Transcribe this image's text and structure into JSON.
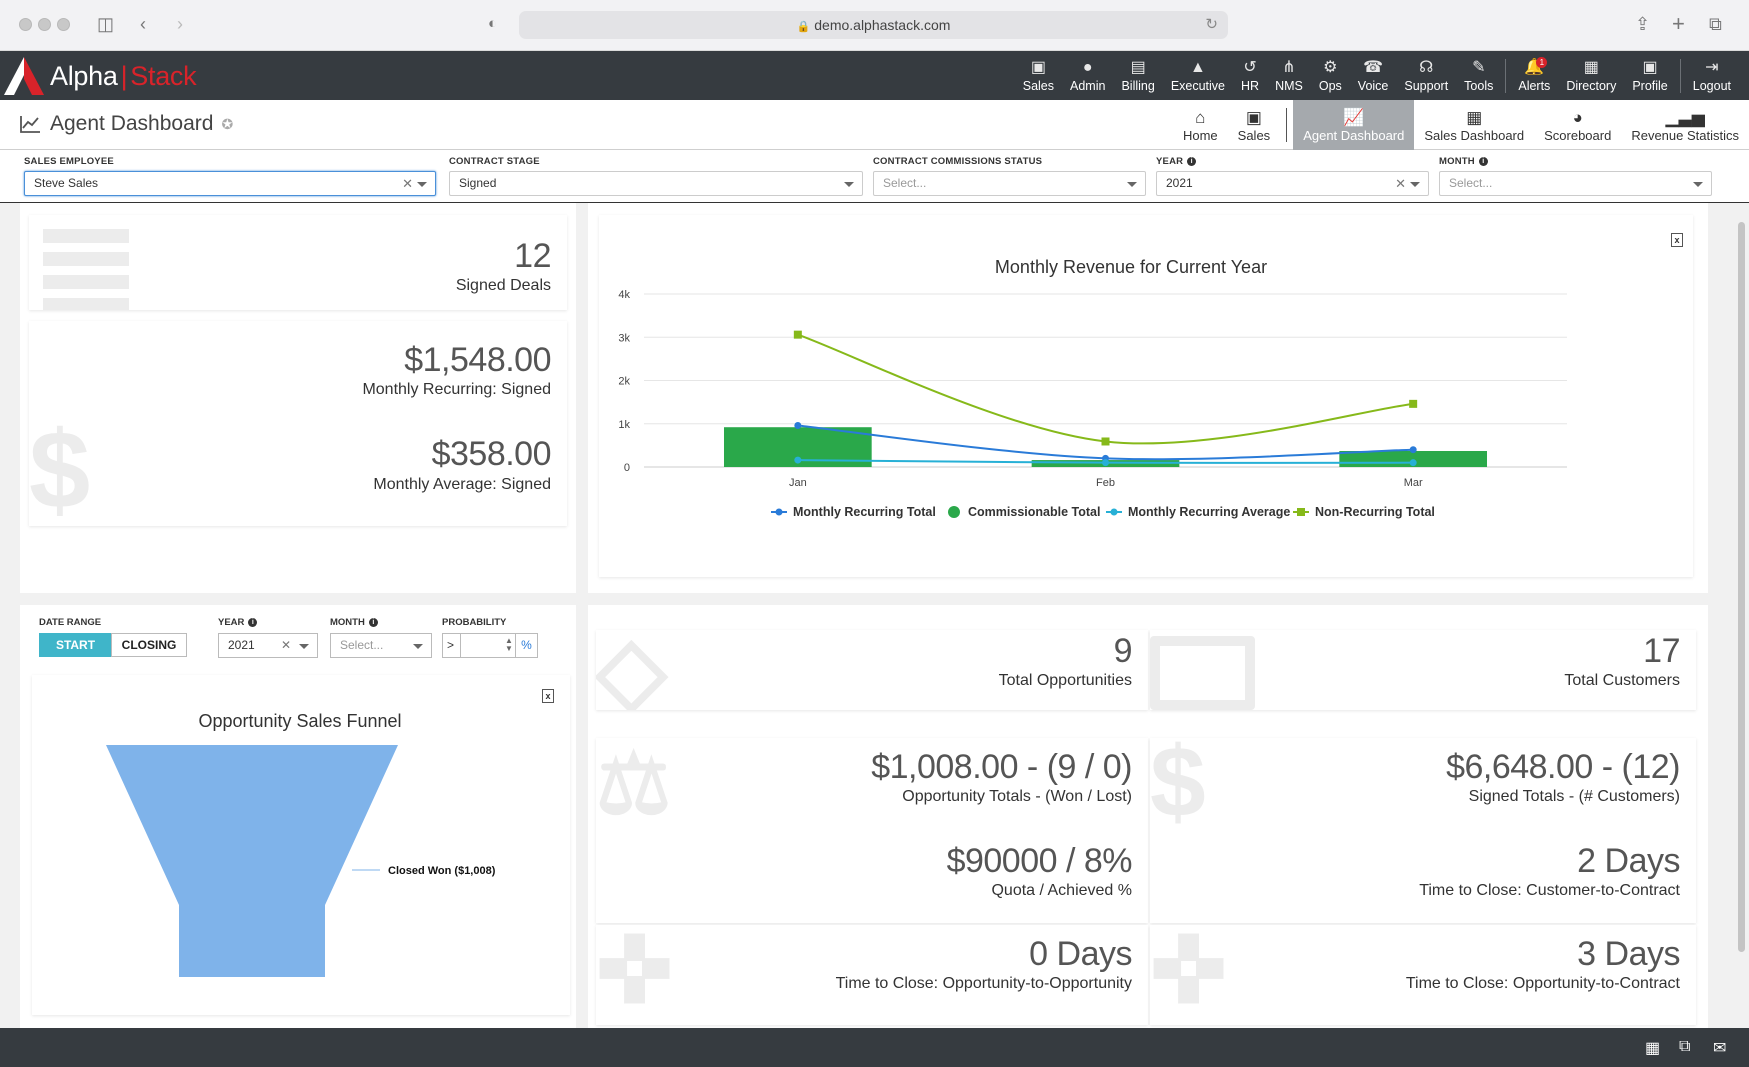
{
  "browser": {
    "url": "demo.alphastack.com"
  },
  "app": {
    "logo_alpha": "Alpha",
    "logo_stack": "Stack",
    "topnav": [
      {
        "label": "Sales",
        "icon": "sales-icon",
        "glyph": "▣"
      },
      {
        "label": "Admin",
        "icon": "admin-icon",
        "glyph": "●"
      },
      {
        "label": "Billing",
        "icon": "billing-icon",
        "glyph": "▤"
      },
      {
        "label": "Executive",
        "icon": "executive-icon",
        "glyph": "▲"
      },
      {
        "label": "HR",
        "icon": "hr-icon",
        "glyph": "↺"
      },
      {
        "label": "NMS",
        "icon": "nms-icon",
        "glyph": "⋔"
      },
      {
        "label": "Ops",
        "icon": "ops-icon",
        "glyph": "⚙"
      },
      {
        "label": "Voice",
        "icon": "voice-icon",
        "glyph": "☎"
      },
      {
        "label": "Support",
        "icon": "support-icon",
        "glyph": "☊"
      },
      {
        "label": "Tools",
        "icon": "tools-icon",
        "glyph": "✎"
      },
      {
        "label": "Alerts",
        "icon": "alerts-icon",
        "glyph": "🔔",
        "badge": "1"
      },
      {
        "label": "Directory",
        "icon": "directory-icon",
        "glyph": "▦"
      },
      {
        "label": "Profile",
        "icon": "profile-icon",
        "glyph": "▣"
      },
      {
        "label": "Logout",
        "icon": "logout-icon",
        "glyph": "⇥"
      }
    ]
  },
  "subheader": {
    "title": "Agent Dashboard",
    "nav": [
      {
        "label": "Home",
        "glyph": "⌂",
        "active": false
      },
      {
        "label": "Sales",
        "glyph": "▣",
        "active": false
      },
      {
        "label": "Agent Dashboard",
        "glyph": "📈",
        "active": true
      },
      {
        "label": "Sales Dashboard",
        "glyph": "▦",
        "active": false
      },
      {
        "label": "Scoreboard",
        "glyph": "◕",
        "active": false
      },
      {
        "label": "Revenue Statistics",
        "glyph": "▁▃▅",
        "active": false
      }
    ]
  },
  "filters": {
    "sales_employee": {
      "label": "SALES EMPLOYEE",
      "value": "Steve Sales"
    },
    "contract_stage": {
      "label": "CONTRACT STAGE",
      "value": "Signed"
    },
    "commission_status": {
      "label": "CONTRACT COMMISSIONS STATUS",
      "placeholder": "Select..."
    },
    "year": {
      "label": "YEAR",
      "value": "2021"
    },
    "month": {
      "label": "MONTH",
      "placeholder": "Select..."
    }
  },
  "stats_top": {
    "signed_deals": {
      "value": "12",
      "label": "Signed Deals"
    },
    "monthly_recurring": {
      "value": "$1,548.00",
      "label": "Monthly Recurring: Signed"
    },
    "monthly_average": {
      "value": "$358.00",
      "label": "Monthly Average: Signed"
    }
  },
  "revenue_chart": {
    "title": "Monthly Revenue for Current Year"
  },
  "chart_data": [
    {
      "type": "line",
      "title": "Monthly Revenue for Current Year",
      "categories": [
        "Jan",
        "Feb",
        "Mar"
      ],
      "ylim": [
        0,
        4000
      ],
      "yticks": [
        "0",
        "1k",
        "2k",
        "3k",
        "4k"
      ],
      "legend_position": "bottom",
      "series": [
        {
          "name": "Monthly Recurring Total",
          "kind": "line",
          "color": "#2a7bd8",
          "values": [
            960,
            200,
            400
          ]
        },
        {
          "name": "Commissionable Total",
          "kind": "bar",
          "color": "#2aa84a",
          "values": [
            920,
            160,
            370
          ]
        },
        {
          "name": "Monthly Recurring Average",
          "kind": "line",
          "color": "#27b0d6",
          "values": [
            160,
            100,
            100
          ]
        },
        {
          "name": "Non-Recurring Total",
          "kind": "line",
          "color": "#86b91a",
          "values": [
            3060,
            590,
            1460
          ]
        }
      ]
    },
    {
      "type": "funnel",
      "title": "Opportunity Sales Funnel",
      "categories": [
        "Closed Won ($1,008)"
      ],
      "values": [
        1008
      ],
      "color": "#7fb3ea"
    }
  ],
  "funnel_controls": {
    "date_range_label": "DATE RANGE",
    "start": "START",
    "closing": "CLOSING",
    "year_label": "YEAR",
    "year_value": "2021",
    "month_label": "MONTH",
    "month_placeholder": "Select...",
    "probability_label": "PROBABILITY",
    "probability_op": ">",
    "probability_unit": "%"
  },
  "funnel": {
    "title": "Opportunity Sales Funnel",
    "label": "Closed Won ($1,008)"
  },
  "stats_bottom": {
    "total_opportunities": {
      "value": "9",
      "label": "Total Opportunities"
    },
    "total_customers": {
      "value": "17",
      "label": "Total Customers"
    },
    "opportunity_totals": {
      "value": "$1,008.00 - (9 / 0)",
      "label": "Opportunity Totals - (Won / Lost)"
    },
    "signed_totals": {
      "value": "$6,648.00 - (12)",
      "label": "Signed Totals - (# Customers)"
    },
    "quota": {
      "value": "$90000 / 8%",
      "label": "Quota / Achieved %"
    },
    "ttc_customer_contract": {
      "value": "2 Days",
      "label": "Time to Close: Customer-to-Contract"
    },
    "ttc_opp_opp": {
      "value": "0 Days",
      "label": "Time to Close: Opportunity-to-Opportunity"
    },
    "ttc_opp_contract": {
      "value": "3 Days",
      "label": "Time to Close: Opportunity-to-Contract"
    }
  }
}
